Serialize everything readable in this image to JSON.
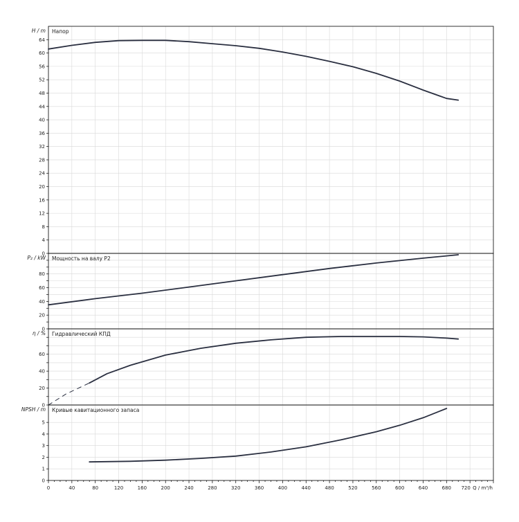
{
  "chart_data": {
    "type": "line",
    "grid": true,
    "colors": {
      "curve": "#2a2f40",
      "grid": "#d8d8d8",
      "axis": "#000000",
      "background": "#ffffff"
    },
    "x_axis": {
      "label": "Q / m³/h",
      "range": [
        0,
        760
      ],
      "ticks": [
        0,
        40,
        80,
        120,
        160,
        200,
        240,
        280,
        320,
        360,
        400,
        440,
        480,
        520,
        560,
        600,
        640,
        680,
        720
      ],
      "tick_labels": [
        "0",
        "40",
        "80",
        "120",
        "160",
        "200",
        "240",
        "280",
        "320",
        "360",
        "400",
        "440",
        "480",
        "520",
        "560",
        "600",
        "640",
        "680",
        "720"
      ]
    },
    "panels": [
      {
        "id": "head",
        "title": "Напор",
        "ylabel": "H / m",
        "ylim": [
          0,
          68
        ],
        "yticks": [
          0,
          4,
          8,
          12,
          16,
          20,
          24,
          28,
          32,
          36,
          40,
          44,
          48,
          52,
          56,
          60,
          64
        ],
        "series": [
          {
            "x": [
              0,
              40,
              80,
              120,
              160,
              200,
              240,
              280,
              320,
              360,
              400,
              440,
              480,
              520,
              560,
              600,
              640,
              680,
              700
            ],
            "y": [
              61.2,
              62.3,
              63.2,
              63.7,
              63.8,
              63.8,
              63.4,
              62.8,
              62.2,
              61.4,
              60.3,
              59.0,
              57.5,
              55.9,
              53.9,
              51.6,
              48.9,
              46.4,
              45.9
            ],
            "dashed": false
          }
        ]
      },
      {
        "id": "power",
        "title": "Мощность на валу P2",
        "ylabel": "P₂ / kW",
        "ylim": [
          0,
          110
        ],
        "yticks": [
          0,
          10,
          20,
          30,
          40,
          50,
          60,
          70,
          80,
          90,
          100
        ],
        "ytick_labels": [
          "0",
          "",
          "20",
          "",
          "40",
          "",
          "60",
          "",
          "80",
          "",
          ""
        ],
        "series": [
          {
            "x": [
              0,
              80,
              160,
              240,
              320,
              400,
              480,
              560,
              640,
              700
            ],
            "y": [
              35,
              44,
              52,
              61,
              70,
              79,
              88,
              96,
              103,
              108
            ],
            "dashed": false
          }
        ]
      },
      {
        "id": "efficiency",
        "title": "Гидравлический КПД",
        "ylabel": "η / %",
        "ylim": [
          0,
          90
        ],
        "yticks": [
          0,
          10,
          20,
          30,
          40,
          50,
          60,
          70,
          80
        ],
        "ytick_labels": [
          "0",
          "",
          "20",
          "",
          "40",
          "",
          "60",
          "",
          ""
        ],
        "series": [
          {
            "x": [
              0,
              30,
              70
            ],
            "y": [
              0,
              13,
              26
            ],
            "dashed": true
          },
          {
            "x": [
              70,
              100,
              140,
              200,
              260,
              320,
              380,
              440,
              500,
              560,
              600,
              640,
              680,
              700
            ],
            "y": [
              26,
              37,
              47,
              59,
              67,
              73,
              77,
              80,
              81,
              81,
              81,
              80.5,
              79,
              78
            ],
            "dashed": false
          }
        ]
      },
      {
        "id": "npsh",
        "title": "Кривые кавитационного запаса",
        "ylabel": "NPSH / m",
        "ylim": [
          0,
          6.5
        ],
        "yticks": [
          0,
          1,
          2,
          3,
          4,
          5
        ],
        "series": [
          {
            "x": [
              70,
              140,
              200,
              260,
              320,
              380,
              440,
              500,
              560,
              600,
              640,
              680
            ],
            "y": [
              1.6,
              1.65,
              1.75,
              1.9,
              2.1,
              2.45,
              2.9,
              3.5,
              4.2,
              4.75,
              5.4,
              6.2
            ],
            "dashed": false
          }
        ]
      }
    ]
  }
}
